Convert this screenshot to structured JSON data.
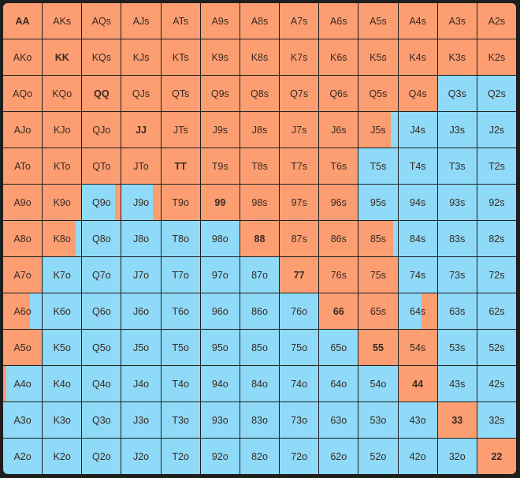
{
  "colors": {
    "raise": "#FC9E72",
    "fold": "#8EDAF8",
    "text": "#3a2a22"
  },
  "ranks": [
    "A",
    "K",
    "Q",
    "J",
    "T",
    "9",
    "8",
    "7",
    "6",
    "5",
    "4",
    "3",
    "2"
  ],
  "hands": [
    [
      "AA",
      "AKs",
      "AQs",
      "AJs",
      "ATs",
      "A9s",
      "A8s",
      "A7s",
      "A6s",
      "A5s",
      "A4s",
      "A3s",
      "A2s"
    ],
    [
      "AKo",
      "KK",
      "KQs",
      "KJs",
      "KTs",
      "K9s",
      "K8s",
      "K7s",
      "K6s",
      "K5s",
      "K4s",
      "K3s",
      "K2s"
    ],
    [
      "AQo",
      "KQo",
      "QQ",
      "QJs",
      "QTs",
      "Q9s",
      "Q8s",
      "Q7s",
      "Q6s",
      "Q5s",
      "Q4s",
      "Q3s",
      "Q2s"
    ],
    [
      "AJo",
      "KJo",
      "QJo",
      "JJ",
      "JTs",
      "J9s",
      "J8s",
      "J7s",
      "J6s",
      "J5s",
      "J4s",
      "J3s",
      "J2s"
    ],
    [
      "ATo",
      "KTo",
      "QTo",
      "JTo",
      "TT",
      "T9s",
      "T8s",
      "T7s",
      "T6s",
      "T5s",
      "T4s",
      "T3s",
      "T2s"
    ],
    [
      "A9o",
      "K9o",
      "Q9o",
      "J9o",
      "T9o",
      "99",
      "98s",
      "97s",
      "96s",
      "95s",
      "94s",
      "93s",
      "92s"
    ],
    [
      "A8o",
      "K8o",
      "Q8o",
      "J8o",
      "T8o",
      "98o",
      "88",
      "87s",
      "86s",
      "85s",
      "84s",
      "83s",
      "82s"
    ],
    [
      "A7o",
      "K7o",
      "Q7o",
      "J7o",
      "T7o",
      "97o",
      "87o",
      "77",
      "76s",
      "75s",
      "74s",
      "73s",
      "72s"
    ],
    [
      "A6o",
      "K6o",
      "Q6o",
      "J6o",
      "T6o",
      "96o",
      "86o",
      "76o",
      "66",
      "65s",
      "64s",
      "63s",
      "62s"
    ],
    [
      "A5o",
      "K5o",
      "Q5o",
      "J5o",
      "T5o",
      "95o",
      "85o",
      "75o",
      "65o",
      "55",
      "54s",
      "53s",
      "52s"
    ],
    [
      "A4o",
      "K4o",
      "Q4o",
      "J4o",
      "T4o",
      "94o",
      "84o",
      "74o",
      "64o",
      "54o",
      "44",
      "43s",
      "42s"
    ],
    [
      "A3o",
      "K3o",
      "Q3o",
      "J3o",
      "T3o",
      "93o",
      "83o",
      "73o",
      "63o",
      "53o",
      "43o",
      "33",
      "32s"
    ],
    [
      "A2o",
      "K2o",
      "Q2o",
      "J2o",
      "T2o",
      "92o",
      "82o",
      "72o",
      "62o",
      "52o",
      "42o",
      "32o",
      "22"
    ]
  ],
  "raise_frequency": [
    [
      1,
      1,
      1,
      1,
      1,
      1,
      1,
      1,
      1,
      1,
      1,
      1,
      1
    ],
    [
      1,
      1,
      1,
      1,
      1,
      1,
      1,
      1,
      1,
      1,
      1,
      1,
      1
    ],
    [
      1,
      1,
      1,
      1,
      1,
      1,
      1,
      1,
      1,
      1,
      1,
      0,
      0
    ],
    [
      1,
      1,
      1,
      1,
      1,
      1,
      1,
      1,
      1,
      0.82,
      0,
      0,
      0
    ],
    [
      1,
      1,
      1,
      1,
      1,
      1,
      1,
      1,
      1,
      0,
      0,
      0,
      0
    ],
    [
      1,
      1,
      0.15,
      0.2,
      1,
      1,
      1,
      1,
      1,
      0,
      0,
      0,
      0
    ],
    [
      1,
      0.85,
      0,
      0,
      0,
      0,
      1,
      1,
      1,
      0.88,
      0,
      0,
      0
    ],
    [
      1,
      0,
      0,
      0,
      0,
      0,
      0,
      1,
      1,
      1,
      0,
      0,
      0
    ],
    [
      0.7,
      0,
      0,
      0,
      0,
      0,
      0,
      0,
      1,
      1,
      0.4,
      0,
      0
    ],
    [
      1,
      0,
      0,
      0,
      0,
      0,
      0,
      0,
      0,
      1,
      1,
      0,
      0
    ],
    [
      0.08,
      0,
      0,
      0,
      0,
      0,
      0,
      0,
      0,
      0,
      1,
      0,
      0
    ],
    [
      0,
      0,
      0,
      0,
      0,
      0,
      0,
      0,
      0,
      0,
      0,
      1,
      0
    ],
    [
      0,
      0,
      0,
      0,
      0,
      0,
      0,
      0,
      0,
      0,
      0,
      0,
      1
    ]
  ],
  "fill_side": [
    [
      "L",
      "L",
      "L",
      "L",
      "L",
      "L",
      "L",
      "L",
      "L",
      "L",
      "L",
      "L",
      "L"
    ],
    [
      "L",
      "L",
      "L",
      "L",
      "L",
      "L",
      "L",
      "L",
      "L",
      "L",
      "L",
      "L",
      "L"
    ],
    [
      "L",
      "L",
      "L",
      "L",
      "L",
      "L",
      "L",
      "L",
      "L",
      "L",
      "L",
      "L",
      "L"
    ],
    [
      "L",
      "L",
      "L",
      "L",
      "L",
      "L",
      "L",
      "L",
      "L",
      "L",
      "L",
      "L",
      "L"
    ],
    [
      "L",
      "L",
      "L",
      "L",
      "L",
      "L",
      "L",
      "L",
      "L",
      "L",
      "L",
      "L",
      "L"
    ],
    [
      "L",
      "L",
      "R",
      "R",
      "L",
      "L",
      "L",
      "L",
      "L",
      "L",
      "L",
      "L",
      "L"
    ],
    [
      "L",
      "L",
      "L",
      "L",
      "L",
      "L",
      "L",
      "L",
      "L",
      "L",
      "L",
      "L",
      "L"
    ],
    [
      "L",
      "L",
      "L",
      "L",
      "L",
      "L",
      "L",
      "L",
      "L",
      "L",
      "L",
      "L",
      "L"
    ],
    [
      "L",
      "L",
      "L",
      "L",
      "L",
      "L",
      "L",
      "L",
      "L",
      "L",
      "R",
      "L",
      "L"
    ],
    [
      "L",
      "L",
      "L",
      "L",
      "L",
      "L",
      "L",
      "L",
      "L",
      "L",
      "L",
      "L",
      "L"
    ],
    [
      "L",
      "L",
      "L",
      "L",
      "L",
      "L",
      "L",
      "L",
      "L",
      "L",
      "L",
      "L",
      "L"
    ],
    [
      "L",
      "L",
      "L",
      "L",
      "L",
      "L",
      "L",
      "L",
      "L",
      "L",
      "L",
      "L",
      "L"
    ],
    [
      "L",
      "L",
      "L",
      "L",
      "L",
      "L",
      "L",
      "L",
      "L",
      "L",
      "L",
      "L",
      "L"
    ]
  ]
}
